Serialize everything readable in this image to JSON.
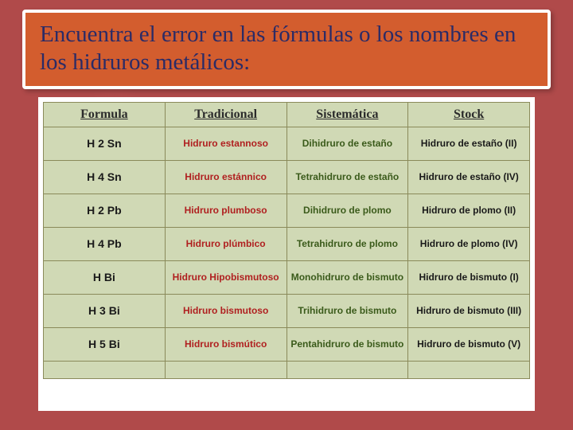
{
  "title": "Encuentra el error en las fórmulas o  los nombres en los hidruros metálicos:",
  "colors": {
    "page_bg": "#b04a4a",
    "title_bg": "#d35d2e",
    "title_border": "#ffffff",
    "title_text": "#2b2b66",
    "cell_bg": "#d0d9b5",
    "cell_border": "#8a8a5a",
    "formula_text": "#1a1a1a",
    "trad_text": "#b02020",
    "sist_text": "#3a5a1a",
    "stock_text": "#1a1a1a"
  },
  "table": {
    "columns": [
      "Formula",
      "Tradicional",
      "Sistemática",
      "Stock"
    ],
    "rows": [
      {
        "formula": "H 2 Sn",
        "tradicional": "Hidruro estannoso",
        "sistematica": "Dihidruro de estaño",
        "stock": "Hidruro de estaño (II)"
      },
      {
        "formula": "H 4 Sn",
        "tradicional": "Hidruro estánnico",
        "sistematica": "Tetrahidruro de estaño",
        "stock": "Hidruro de estaño (IV)"
      },
      {
        "formula": "H 2 Pb",
        "tradicional": "Hidruro plumboso",
        "sistematica": "Dihidruro de plomo",
        "stock": "Hidruro de plomo (II)"
      },
      {
        "formula": "H 4 Pb",
        "tradicional": "Hidruro plúmbico",
        "sistematica": "Tetrahidruro de plomo",
        "stock": "Hidruro de plomo (IV)"
      },
      {
        "formula": "H Bi",
        "tradicional": "Hidruro Hipobismutoso",
        "sistematica": "Monohidruro de bismuto",
        "stock": "Hidruro de bismuto (I)"
      },
      {
        "formula": "H 3 Bi",
        "tradicional": "Hidruro bismutoso",
        "sistematica": "Trihidruro de bismuto",
        "stock": "Hidruro de bismuto (III)"
      },
      {
        "formula": "H 5 Bi",
        "tradicional": "Hidruro bismútico",
        "sistematica": "Pentahidruro de bismuto",
        "stock": "Hidruro de bismuto (V)"
      }
    ]
  }
}
